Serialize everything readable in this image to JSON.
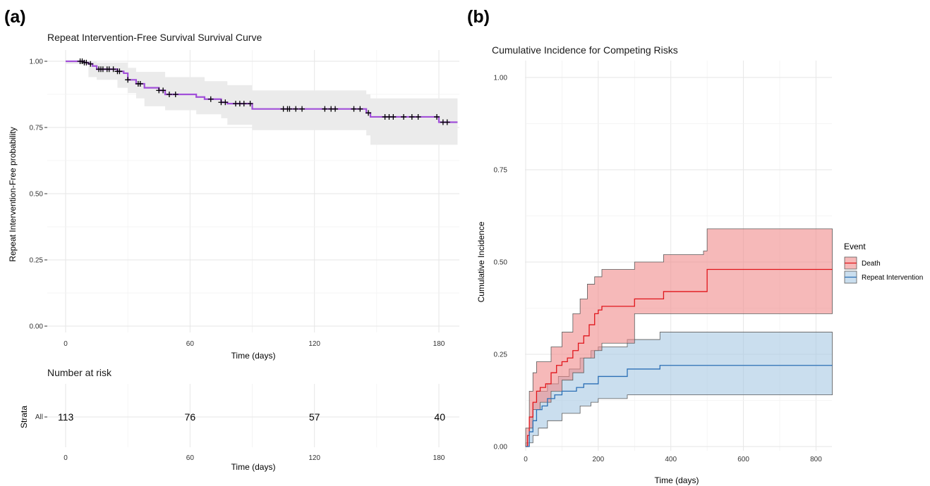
{
  "panel_labels": {
    "a": "(a)",
    "b": "(b)"
  },
  "chart_data": [
    {
      "type": "line",
      "title": "Repeat Intervention-Free Survival Survival Curve",
      "xlabel": "Time (days)",
      "ylabel": "Repeat Intervention-Free probability",
      "xlim": [
        0,
        189
      ],
      "ylim": [
        0,
        1
      ],
      "x_ticks": [
        0,
        60,
        120,
        180
      ],
      "y_ticks": [
        0,
        0.25,
        0.5,
        0.75,
        1.0
      ],
      "y_tick_labels": [
        "0.00",
        "0.25",
        "0.50",
        "0.75",
        "1.00"
      ],
      "grid": true,
      "line_color": "#a14fd9",
      "ci_color": "#ebebeb",
      "series": [
        {
          "steps": [
            [
              0,
              1.0
            ],
            [
              9,
              0.995
            ],
            [
              11,
              0.99
            ],
            [
              13,
              0.982
            ],
            [
              15,
              0.97
            ],
            [
              25,
              0.962
            ],
            [
              28,
              0.955
            ],
            [
              30,
              0.93
            ],
            [
              34,
              0.915
            ],
            [
              38,
              0.9
            ],
            [
              45,
              0.89
            ],
            [
              48,
              0.875
            ],
            [
              63,
              0.865
            ],
            [
              67,
              0.857
            ],
            [
              75,
              0.845
            ],
            [
              78,
              0.84
            ],
            [
              90,
              0.82
            ],
            [
              108,
              0.82
            ],
            [
              145,
              0.805
            ],
            [
              147,
              0.79
            ],
            [
              170,
              0.79
            ],
            [
              180,
              0.77
            ],
            [
              189,
              0.77
            ]
          ],
          "lower": [
            [
              0,
              1.0
            ],
            [
              11,
              0.99
            ],
            [
              15,
              0.94
            ],
            [
              25,
              0.93
            ],
            [
              30,
              0.9
            ],
            [
              34,
              0.88
            ],
            [
              38,
              0.86
            ],
            [
              48,
              0.83
            ],
            [
              63,
              0.815
            ],
            [
              75,
              0.8
            ],
            [
              78,
              0.785
            ],
            [
              90,
              0.76
            ],
            [
              145,
              0.74
            ],
            [
              147,
              0.72
            ],
            [
              180,
              0.685
            ],
            [
              189,
              0.685
            ]
          ],
          "upper": [
            [
              0,
              1.0
            ],
            [
              13,
              0.998
            ],
            [
              15,
              0.995
            ],
            [
              30,
              0.975
            ],
            [
              34,
              0.96
            ],
            [
              48,
              0.94
            ],
            [
              67,
              0.925
            ],
            [
              78,
              0.91
            ],
            [
              90,
              0.89
            ],
            [
              145,
              0.875
            ],
            [
              147,
              0.86
            ],
            [
              180,
              0.86
            ],
            [
              189,
              0.86
            ]
          ],
          "censor_times": [
            7,
            8,
            9,
            10,
            12,
            16,
            17,
            18,
            20,
            21,
            23,
            25,
            26,
            30,
            35,
            36,
            45,
            47,
            50,
            53,
            70,
            75,
            77,
            82,
            84,
            86,
            89,
            105,
            107,
            108,
            111,
            114,
            125,
            128,
            130,
            139,
            142,
            146,
            154,
            156,
            158,
            163,
            167,
            170,
            179,
            182,
            184
          ]
        }
      ]
    },
    {
      "type": "table",
      "title": "Number at risk",
      "xlabel": "Time (days)",
      "ylabel": "Strata",
      "x_ticks": [
        0,
        60,
        120,
        180
      ],
      "rows": [
        {
          "label": "All",
          "times": [
            0,
            60,
            120,
            180
          ],
          "values": [
            "113",
            "76",
            "57",
            "40"
          ]
        }
      ]
    },
    {
      "type": "area",
      "title": "Cumulative Incidence for Competing Risks",
      "xlabel": "Time (days)",
      "ylabel": "Cumulative Incidence",
      "xlim": [
        0,
        845
      ],
      "ylim": [
        0,
        1.03
      ],
      "x_ticks": [
        0,
        200,
        400,
        600,
        800
      ],
      "y_ticks": [
        0,
        0.25,
        0.5,
        0.75,
        1.0
      ],
      "y_tick_labels": [
        "0.00",
        "0.25",
        "0.50",
        "0.75",
        "1.00"
      ],
      "grid": true,
      "legend": {
        "title": "Event",
        "position": "right"
      },
      "series": [
        {
          "name": "Death",
          "line_color": "#e0151b",
          "fill_color": "#f08a8a",
          "steps": [
            [
              0,
              0
            ],
            [
              5,
              0.03
            ],
            [
              10,
              0.08
            ],
            [
              20,
              0.12
            ],
            [
              30,
              0.15
            ],
            [
              40,
              0.16
            ],
            [
              55,
              0.17
            ],
            [
              70,
              0.2
            ],
            [
              85,
              0.22
            ],
            [
              100,
              0.23
            ],
            [
              115,
              0.24
            ],
            [
              130,
              0.26
            ],
            [
              145,
              0.28
            ],
            [
              160,
              0.3
            ],
            [
              175,
              0.33
            ],
            [
              190,
              0.36
            ],
            [
              200,
              0.37
            ],
            [
              210,
              0.38
            ],
            [
              300,
              0.4
            ],
            [
              380,
              0.42
            ],
            [
              500,
              0.48
            ],
            [
              845,
              0.48
            ]
          ],
          "lower": [
            [
              0,
              0
            ],
            [
              20,
              0.05
            ],
            [
              40,
              0.1
            ],
            [
              70,
              0.12
            ],
            [
              100,
              0.15
            ],
            [
              130,
              0.18
            ],
            [
              160,
              0.2
            ],
            [
              190,
              0.24
            ],
            [
              210,
              0.26
            ],
            [
              300,
              0.28
            ],
            [
              500,
              0.36
            ],
            [
              845,
              0.36
            ]
          ],
          "upper": [
            [
              0,
              0
            ],
            [
              10,
              0.15
            ],
            [
              20,
              0.2
            ],
            [
              30,
              0.23
            ],
            [
              70,
              0.27
            ],
            [
              100,
              0.31
            ],
            [
              130,
              0.36
            ],
            [
              150,
              0.4
            ],
            [
              170,
              0.44
            ],
            [
              190,
              0.46
            ],
            [
              210,
              0.48
            ],
            [
              300,
              0.5
            ],
            [
              380,
              0.52
            ],
            [
              490,
              0.53
            ],
            [
              500,
              0.59
            ],
            [
              845,
              0.59
            ]
          ]
        },
        {
          "name": "Repeat Intervention",
          "line_color": "#2b6fb5",
          "fill_color": "#a6c8e3",
          "steps": [
            [
              0,
              0
            ],
            [
              10,
              0.04
            ],
            [
              20,
              0.07
            ],
            [
              30,
              0.1
            ],
            [
              45,
              0.11
            ],
            [
              60,
              0.13
            ],
            [
              80,
              0.14
            ],
            [
              100,
              0.15
            ],
            [
              140,
              0.16
            ],
            [
              160,
              0.17
            ],
            [
              200,
              0.19
            ],
            [
              280,
              0.21
            ],
            [
              370,
              0.22
            ],
            [
              845,
              0.22
            ]
          ],
          "lower": [
            [
              0,
              0
            ],
            [
              20,
              0.01
            ],
            [
              35,
              0.03
            ],
            [
              60,
              0.05
            ],
            [
              100,
              0.07
            ],
            [
              150,
              0.09
            ],
            [
              180,
              0.11
            ],
            [
              200,
              0.12
            ],
            [
              280,
              0.13
            ],
            [
              370,
              0.14
            ],
            [
              845,
              0.14
            ]
          ],
          "upper": [
            [
              0,
              0
            ],
            [
              10,
              0.08
            ],
            [
              20,
              0.12
            ],
            [
              30,
              0.15
            ],
            [
              60,
              0.17
            ],
            [
              90,
              0.19
            ],
            [
              120,
              0.21
            ],
            [
              150,
              0.24
            ],
            [
              180,
              0.26
            ],
            [
              200,
              0.27
            ],
            [
              280,
              0.29
            ],
            [
              370,
              0.31
            ],
            [
              845,
              0.31
            ]
          ]
        }
      ]
    }
  ]
}
